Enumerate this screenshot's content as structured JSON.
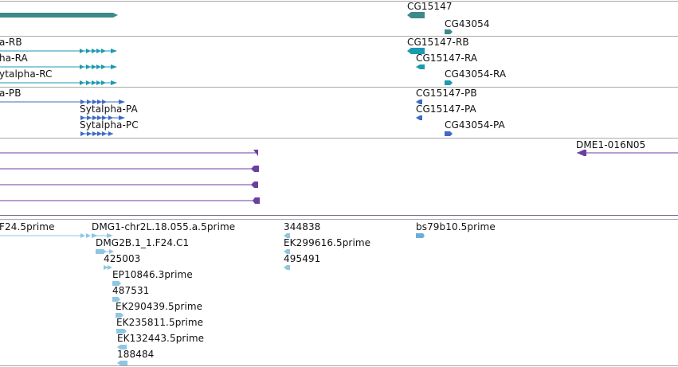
{
  "colors": {
    "gene": "#3d8a8a",
    "transcript_a": "#1b9ab0",
    "transcript_b": "#3f69c4",
    "clone": "#6a3fa0",
    "est_light": "#8ec6e4",
    "est_mid": "#6baed6",
    "divider": "#a9a9a9"
  },
  "tracks": {
    "genes": {
      "labels": [
        "CG15147",
        "CG43054"
      ]
    },
    "transcripts_a": {
      "labels": [
        "a-RB",
        "ha-RA",
        "ytalpha-RC",
        "CG15147-RB",
        "CG15147-RA",
        "CG43054-RA"
      ]
    },
    "transcripts_b": {
      "labels": [
        "a-PB",
        "Sytalpha-PA",
        "Sytalpha-PC",
        "CG15147-PB",
        "CG15147-PA",
        "CG43054-PA"
      ]
    },
    "clones": {
      "labels": [
        "DME1-016N05"
      ]
    },
    "ests": {
      "labels": [
        "F24.5prime",
        "DMG1-chr2L.18.055.a.5prime",
        "DMG2B.1_1.F24.C1",
        "425003",
        "EP10846.3prime",
        "487531",
        "EK290439.5prime",
        "EK235811.5prime",
        "EK132443.5prime",
        "188484",
        "344838",
        "EK299616.5prime",
        "495491",
        "bs79b10.5prime"
      ]
    }
  }
}
